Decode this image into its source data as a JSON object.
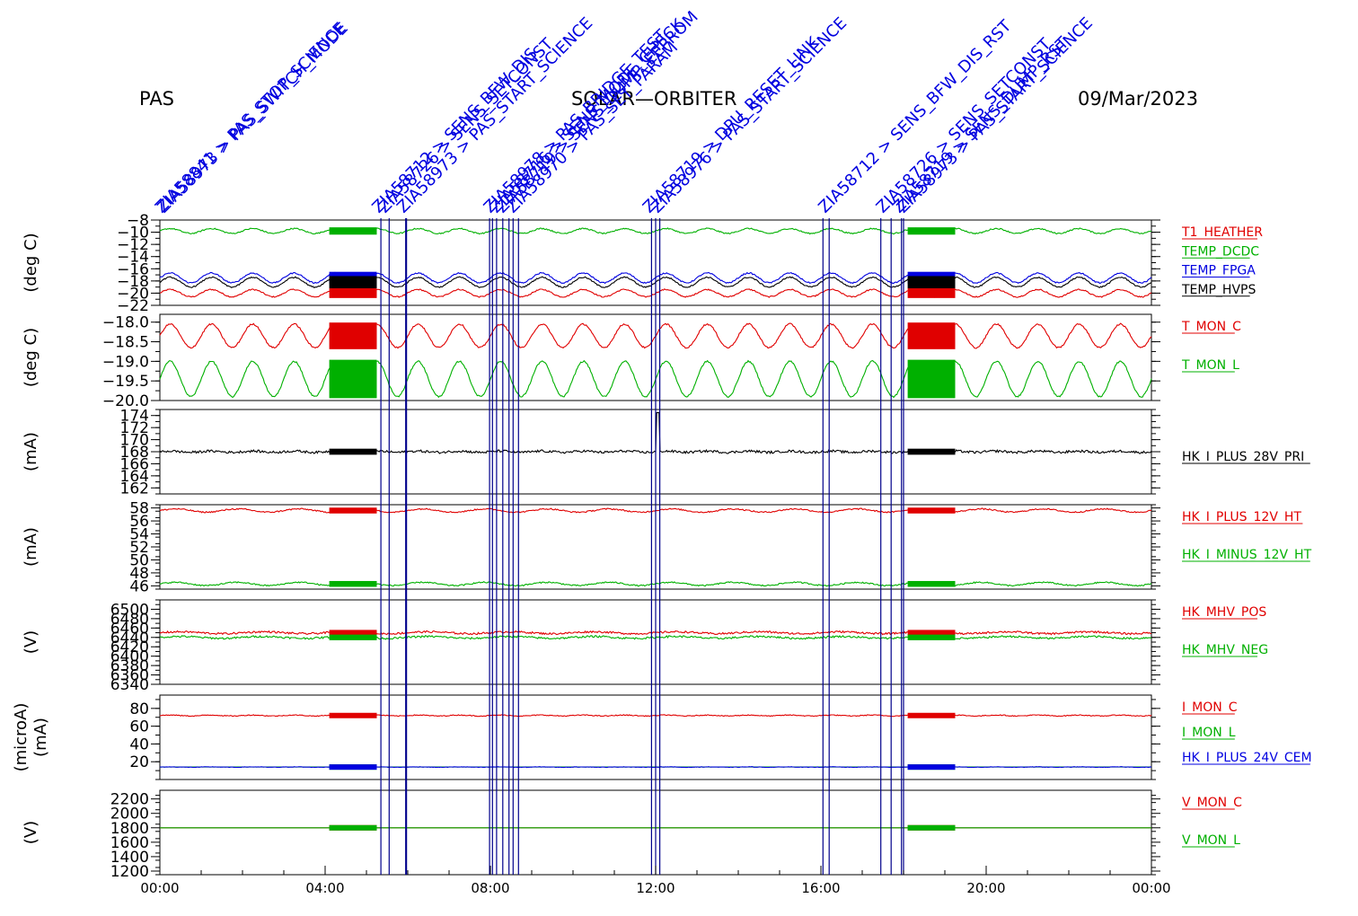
{
  "header": {
    "left": "PAS",
    "center": "SOLAR—ORBITER",
    "right": "09/Mar/2023"
  },
  "colors": {
    "red": "#e00000",
    "green": "#00b000",
    "blue": "#0000e0",
    "black": "#000000",
    "event_line": "#00008b"
  },
  "x_axis": {
    "range_hours": [
      0,
      24
    ],
    "ticks": [
      {
        "hour": 0,
        "label": "00:00"
      },
      {
        "hour": 4,
        "label": "04:00"
      },
      {
        "hour": 8,
        "label": "08:00"
      },
      {
        "hour": 12,
        "label": "12:00"
      },
      {
        "hour": 16,
        "label": "16:00"
      },
      {
        "hour": 20,
        "label": "20:00"
      },
      {
        "hour": 24,
        "label": "00:00"
      }
    ]
  },
  "events": {
    "lines_hours": [
      5.35,
      5.55,
      5.95,
      5.97,
      7.98,
      8.05,
      8.15,
      8.3,
      8.45,
      8.55,
      8.68,
      11.9,
      12.0,
      12.1,
      16.05,
      16.2,
      17.45,
      17.7,
      17.95,
      18.0
    ],
    "labels": [
      {
        "hour": 0.05,
        "text": "ZIA58841 > PAS_STOP_SCIENCE"
      },
      {
        "hour": 0.1,
        "text": "ZIA58973 > PAS_SWITCH_MODE"
      },
      {
        "hour": 5.3,
        "text": "ZIA58712 > SENS_BFW_DIS"
      },
      {
        "hour": 5.45,
        "text": "ZIA58726 > SENS_SETCONST"
      },
      {
        "hour": 5.9,
        "text": "ZIA58973 > PAS_START_SCIENCE"
      },
      {
        "hour": 8.0,
        "text": "ZIA58978 > PAS_BRIDGE_TEST"
      },
      {
        "hour": 8.15,
        "text": "ZIA58716 > SENS_MODE_CHECK"
      },
      {
        "hour": 8.3,
        "text": "ZIA58719 > SENS_DUMP_EEPROM"
      },
      {
        "hour": 8.55,
        "text": "ZIA58970 > PAS_SET_PARAM"
      },
      {
        "hour": 11.85,
        "text": "ZIA58719 > DPU_RESET_LINK"
      },
      {
        "hour": 12.05,
        "text": "ZIA58976 > PAS_START_SCIENCE"
      },
      {
        "hour": 16.1,
        "text": "ZIA58712 > SENS_BFW_DIS_RST"
      },
      {
        "hour": 17.5,
        "text": "ZIA58726 > SENS_SETCONST"
      },
      {
        "hour": 17.9,
        "text": "ZIA58719 > SENS_DUMP_RST"
      },
      {
        "hour": 18.0,
        "text": "ZIA58973 > PAS_START_SCIENCE"
      }
    ]
  },
  "chart_data": [
    {
      "type": "line",
      "ylabel": "(deg C)",
      "ylim": [
        -22,
        -8
      ],
      "yticks": [
        -8,
        -10,
        -12,
        -14,
        -16,
        -18,
        -20,
        -22
      ],
      "series": [
        {
          "name": "T1_HEATHER",
          "color": "#e00000",
          "base": -20.0,
          "amp": 0.6,
          "period_h": 1.0,
          "noise": 0.1
        },
        {
          "name": "TEMP_DCDC",
          "color": "#00b000",
          "base": -9.8,
          "amp": 0.4,
          "period_h": 1.0,
          "noise": 0.1
        },
        {
          "name": "TEMP_FPGA",
          "color": "#0000e0",
          "base": -17.5,
          "amp": 0.8,
          "period_h": 1.0,
          "noise": 0.1
        },
        {
          "name": "TEMP_HVPS",
          "color": "#000000",
          "base": -18.2,
          "amp": 0.8,
          "period_h": 1.0,
          "noise": 0.1
        }
      ]
    },
    {
      "type": "line",
      "ylabel": "(deg C)",
      "ylim": [
        -20.0,
        -17.8
      ],
      "yticks": [
        -18.0,
        -18.5,
        -19.0,
        -19.5,
        -20.0
      ],
      "ytick_labels": [
        "−18.0",
        "−18.5",
        "−19.0",
        "−19.5",
        "−20.0"
      ],
      "series": [
        {
          "name": "T_MON_C",
          "color": "#e00000",
          "base": -18.35,
          "amp": 0.3,
          "period_h": 1.0,
          "noise": 0.02
        },
        {
          "name": "T_MON_L",
          "color": "#00b000",
          "base": -19.45,
          "amp": 0.45,
          "period_h": 1.0,
          "noise": 0.02
        }
      ]
    },
    {
      "type": "line",
      "ylabel": "(mA)",
      "ylim": [
        161,
        175
      ],
      "yticks": [
        174,
        172,
        170,
        168,
        166,
        164,
        162
      ],
      "series": [
        {
          "name": "HK_I_PLUS_28V_PRI",
          "color": "#000000",
          "base": 168.0,
          "amp": 0.1,
          "period_h": 1.0,
          "noise": 0.2,
          "spike_hour": 12.05,
          "spike_value": 174.5
        }
      ]
    },
    {
      "type": "line",
      "ylabel": "(mA)",
      "ylim": [
        45.5,
        58.5
      ],
      "yticks": [
        58,
        56,
        54,
        52,
        50,
        48,
        46
      ],
      "series": [
        {
          "name": "HK_I_PLUS_12V_HT",
          "color": "#e00000",
          "base": 57.6,
          "amp": 0.25,
          "period_h": 1.5,
          "noise": 0.1
        },
        {
          "name": "HK_I_MINUS_12V_HT",
          "color": "#00b000",
          "base": 46.3,
          "amp": 0.25,
          "period_h": 1.5,
          "noise": 0.1
        }
      ]
    },
    {
      "type": "line",
      "ylabel": "(V)",
      "ylim": [
        6340,
        6520
      ],
      "yticks": [
        6500,
        6480,
        6460,
        6440,
        6420,
        6400,
        6380,
        6360,
        6340
      ],
      "series": [
        {
          "name": "HK_MHV_POS",
          "color": "#e00000",
          "base": 6450,
          "amp": 2,
          "period_h": 2.0,
          "noise": 2
        },
        {
          "name": "HK_MHV_NEG",
          "color": "#00b000",
          "base": 6440,
          "amp": 2,
          "period_h": 2.0,
          "noise": 2
        }
      ]
    },
    {
      "type": "line",
      "ylabel": "(microA)\n(mA)",
      "ylim": [
        0,
        95
      ],
      "yticks": [
        80,
        60,
        40,
        20
      ],
      "series": [
        {
          "name": "I_MON_C",
          "color": "#e00000",
          "base": 72,
          "amp": 0.5,
          "period_h": 1.0,
          "noise": 0.5
        },
        {
          "name": "I_MON_L",
          "color": "#00b000",
          "base": 14,
          "amp": 0,
          "period_h": 1.0,
          "noise": 0
        },
        {
          "name": "HK_I_PLUS_24V_CEM",
          "color": "#0000e0",
          "base": 14,
          "amp": 0.2,
          "period_h": 1.0,
          "noise": 0.3
        }
      ]
    },
    {
      "type": "line",
      "ylabel": "(V)",
      "ylim": [
        1150,
        2320
      ],
      "yticks": [
        2200,
        2000,
        1800,
        1600,
        1400,
        1200
      ],
      "series": [
        {
          "name": "V_MON_C",
          "color": "#e00000",
          "base": 1800,
          "amp": 0,
          "period_h": 1.0,
          "noise": 0
        },
        {
          "name": "V_MON_L",
          "color": "#00b000",
          "base": 1800,
          "amp": 0,
          "period_h": 1.0,
          "noise": 0
        }
      ]
    }
  ],
  "high_rate_blocks_hours": [
    [
      4.1,
      5.25
    ],
    [
      18.1,
      19.25
    ]
  ]
}
